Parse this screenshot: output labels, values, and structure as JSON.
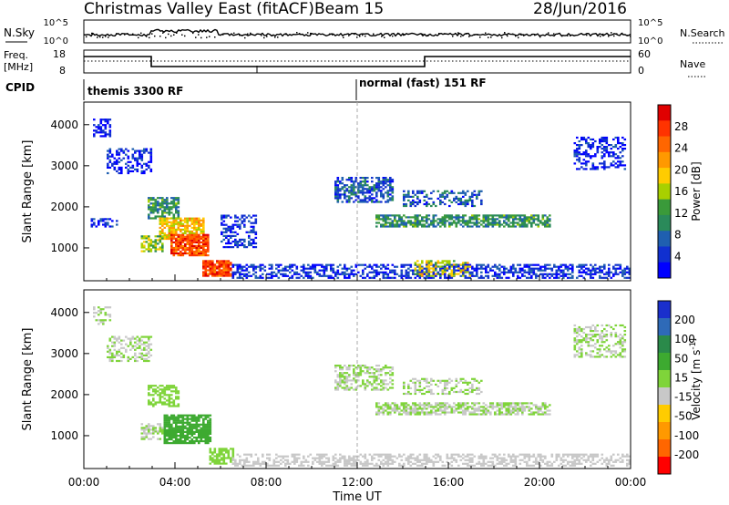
{
  "header": {
    "site": "Christmas Valley East (fitACF)",
    "beam": "Beam 15",
    "date": "28/Jun/2016"
  },
  "strip_labels": {
    "nsky": "N.Sky",
    "nsearch": "N.Search",
    "freq_line1": "Freq.",
    "freq_line2": "[MHz]",
    "nave": "Nave",
    "cpid": "CPID"
  },
  "strip_ticks": {
    "noise_left": [
      "10^5",
      "10^0"
    ],
    "noise_right": [
      "10^5",
      "10^0"
    ],
    "freq_left": [
      "18",
      "8"
    ],
    "nave_right": [
      "60",
      "0"
    ]
  },
  "cpid_blocks": [
    {
      "start_hour": 0,
      "label": "themis 3300 RF"
    },
    {
      "start_hour": 12,
      "label": "normal (fast) 151 RF"
    }
  ],
  "chart_data": [
    {
      "type": "heatmap",
      "name": "Power",
      "ylabel": "Slant Range [km]",
      "xlabel": "Time UT",
      "x_ticks": [
        "00:00",
        "04:00",
        "08:00",
        "12:00",
        "16:00",
        "20:00",
        "00:00"
      ],
      "xlim_hours": [
        0,
        24
      ],
      "ylim": [
        200,
        4550
      ],
      "y_ticks": [
        1000,
        2000,
        3000,
        4000
      ],
      "colorbar": {
        "label": "Power [dB]",
        "ticks": [
          "28",
          "24",
          "20",
          "16",
          "12",
          "8",
          "4"
        ],
        "colors": [
          "#e00000",
          "#ff3300",
          "#ff6600",
          "#ff9900",
          "#ffcc00",
          "#a8d000",
          "#3a9a3a",
          "#2a8a5a",
          "#1f5fb0",
          "#1030d0",
          "#0000ff"
        ]
      },
      "regions": [
        {
          "t": [
            0.4,
            1.2
          ],
          "r": [
            3700,
            4150
          ],
          "level": 4,
          "dens": 0.55
        },
        {
          "t": [
            1.0,
            3.0
          ],
          "r": [
            2800,
            3400
          ],
          "level": 5,
          "dens": 0.5
        },
        {
          "t": [
            2.8,
            4.2
          ],
          "r": [
            1700,
            2200
          ],
          "level": 12,
          "dens": 0.7
        },
        {
          "t": [
            3.3,
            5.2
          ],
          "r": [
            1200,
            1700
          ],
          "level": 20,
          "dens": 0.8
        },
        {
          "t": [
            3.8,
            5.4
          ],
          "r": [
            800,
            1300
          ],
          "level": 27,
          "dens": 0.9
        },
        {
          "t": [
            5.2,
            6.4
          ],
          "r": [
            300,
            700
          ],
          "level": 27,
          "dens": 0.9
        },
        {
          "t": [
            2.5,
            3.5
          ],
          "r": [
            900,
            1300
          ],
          "level": 16,
          "dens": 0.7
        },
        {
          "t": [
            0.3,
            1.5
          ],
          "r": [
            1500,
            1700
          ],
          "level": 6,
          "dens": 0.5
        },
        {
          "t": [
            6.0,
            7.5
          ],
          "r": [
            1000,
            1800
          ],
          "level": 6,
          "dens": 0.5
        },
        {
          "t": [
            11.0,
            13.5
          ],
          "r": [
            2100,
            2700
          ],
          "level": 8,
          "dens": 0.6
        },
        {
          "t": [
            12.8,
            20.5
          ],
          "r": [
            1500,
            1800
          ],
          "level": 12,
          "dens": 0.7
        },
        {
          "t": [
            14.0,
            17.5
          ],
          "r": [
            2000,
            2400
          ],
          "level": 8,
          "dens": 0.45
        },
        {
          "t": [
            21.5,
            23.8
          ],
          "r": [
            2900,
            3700
          ],
          "level": 5,
          "dens": 0.45
        },
        {
          "t": [
            6.5,
            24.0
          ],
          "r": [
            250,
            600
          ],
          "level": 6,
          "dens": 0.55
        },
        {
          "t": [
            14.5,
            17.0
          ],
          "r": [
            300,
            700
          ],
          "level": 18,
          "dens": 0.5
        }
      ]
    },
    {
      "type": "heatmap",
      "name": "Velocity",
      "ylabel": "Slant Range [km]",
      "xlabel": "Time UT",
      "x_ticks": [
        "00:00",
        "04:00",
        "08:00",
        "12:00",
        "16:00",
        "20:00",
        "00:00"
      ],
      "xlim_hours": [
        0,
        24
      ],
      "ylim": [
        200,
        4550
      ],
      "y_ticks": [
        1000,
        2000,
        3000,
        4000
      ],
      "colorbar": {
        "label": "Velocity [m s^-1]",
        "ticks": [
          "200",
          "100",
          "50",
          "15",
          "-15",
          "-50",
          "-100",
          "-200"
        ],
        "colors": [
          "#1a2fcc",
          "#2e6ab8",
          "#2a8a4a",
          "#3daa30",
          "#7fd43a",
          "#c8c8c8",
          "#ffcc00",
          "#ff9900",
          "#ff6600",
          "#ff0000"
        ]
      },
      "regions": [
        {
          "t": [
            0.4,
            1.2
          ],
          "r": [
            3700,
            4150
          ],
          "level": 0,
          "dens": 0.45
        },
        {
          "t": [
            1.0,
            3.0
          ],
          "r": [
            2800,
            3400
          ],
          "level": 0,
          "dens": 0.45
        },
        {
          "t": [
            2.8,
            4.2
          ],
          "r": [
            1700,
            2200
          ],
          "level": 40,
          "dens": 0.6
        },
        {
          "t": [
            3.5,
            5.5
          ],
          "r": [
            800,
            1500
          ],
          "level": 60,
          "dens": 0.85
        },
        {
          "t": [
            2.5,
            3.5
          ],
          "r": [
            900,
            1300
          ],
          "level": 0,
          "dens": 0.6
        },
        {
          "t": [
            5.5,
            6.5
          ],
          "r": [
            300,
            700
          ],
          "level": 30,
          "dens": 0.7
        },
        {
          "t": [
            11.0,
            13.5
          ],
          "r": [
            2100,
            2700
          ],
          "level": 0,
          "dens": 0.55
        },
        {
          "t": [
            12.8,
            20.5
          ],
          "r": [
            1500,
            1800
          ],
          "level": 0,
          "dens": 0.65
        },
        {
          "t": [
            14.0,
            17.5
          ],
          "r": [
            2000,
            2400
          ],
          "level": 0,
          "dens": 0.4
        },
        {
          "t": [
            21.5,
            23.8
          ],
          "r": [
            2900,
            3700
          ],
          "level": 0,
          "dens": 0.4
        },
        {
          "t": [
            6.5,
            24.0
          ],
          "r": [
            250,
            550
          ],
          "level": -30,
          "dens": 0.5
        }
      ]
    }
  ]
}
